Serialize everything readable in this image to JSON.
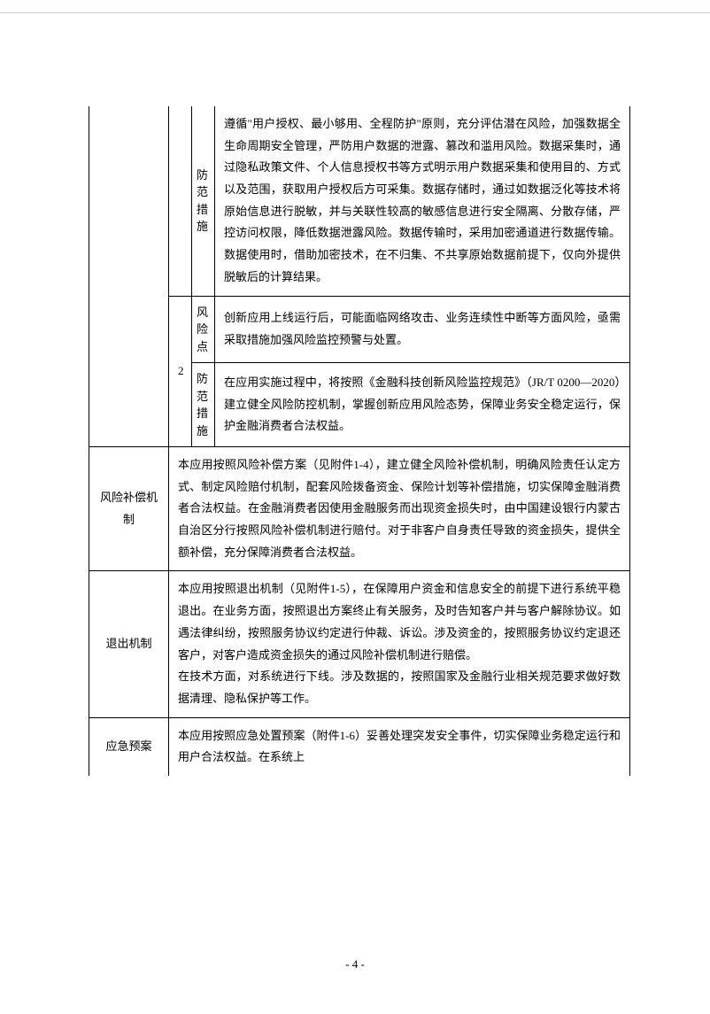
{
  "table": {
    "rows": [
      {
        "label": "",
        "num": "",
        "sublabel": "防范措施",
        "content": "遵循\"用户授权、最小够用、全程防护\"原则，充分评估潜在风险，加强数据全生命周期安全管理，严防用户数据的泄露、篡改和滥用风险。数据采集时，通过隐私政策文件、个人信息授权书等方式明示用户数据采集和使用目的、方式以及范围，获取用户授权后方可采集。数据存储时，通过如数据泛化等技术将原始信息进行脱敏，并与关联性较高的敏感信息进行安全隔离、分散存储，严控访问权限，降低数据泄露风险。数据传输时，采用加密通道进行数据传输。数据使用时，借助加密技术，在不归集、不共享原始数据前提下，仅向外提供脱敏后的计算结果。"
      },
      {
        "num": "2",
        "sublabel": "风险点",
        "content": "创新应用上线运行后，可能面临网络攻击、业务连续性中断等方面风险，亟需采取措施加强风险监控预警与处置。"
      },
      {
        "sublabel": "防范措施",
        "content": "在应用实施过程中，将按照《金融科技创新风险监控规范》（JR/T 0200—2020）建立健全风险防控机制，掌握创新应用风险态势，保障业务安全稳定运行，保护金融消费者合法权益。"
      },
      {
        "label": "风险补偿机制",
        "content": "本应用按照风险补偿方案（见附件1-4），建立健全风险补偿机制，明确风险责任认定方式、制定风险赔付机制，配套风险拨备资金、保险计划等补偿措施，切实保障金融消费者合法权益。在金融消费者因使用金融服务而出现资金损失时，由中国建设银行内蒙古自治区分行按照风险补偿机制进行赔付。对于非客户自身责任导致的资金损失，提供全额补偿，充分保障消费者合法权益。"
      },
      {
        "label": "退出机制",
        "content": "本应用按照退出机制（见附件1-5），在保障用户资金和信息安全的前提下进行系统平稳退出。在业务方面，按照退出方案终止有关服务，及时告知客户并与客户解除协议。如遇法律纠纷，按照服务协议约定进行仲裁、诉讼。涉及资金的，按照服务协议约定退还客户，对客户造成资金损失的通过风险补偿机制进行赔偿。\n在技术方面，对系统进行下线。涉及数据的，按照国家及金融行业相关规范要求做好数据清理、隐私保护等工作。"
      },
      {
        "label": "应急预案",
        "content": "本应用按照应急处置预案（附件1-6）妥善处理突发安全事件，切实保障业务稳定运行和用户合法权益。在系统上"
      }
    ]
  },
  "pageNumber": "- 4 -",
  "colors": {
    "border": "#000000",
    "text": "#000000",
    "background": "#ffffff"
  },
  "typography": {
    "font_family": "SimSun",
    "font_size_body": 13,
    "line_height": 1.9
  }
}
